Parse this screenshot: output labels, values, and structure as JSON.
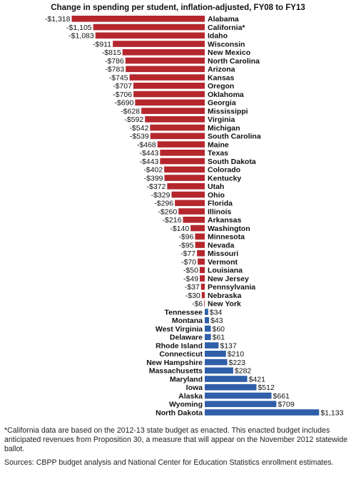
{
  "chart_data": {
    "type": "bar",
    "orientation": "horizontal",
    "title": "Change in spending per student, inflation-adjusted, FY08 to FY13",
    "colors": {
      "negative": "#b5272d",
      "positive": "#2f5fa8"
    },
    "categories": [
      "Alabama",
      "California*",
      "Idaho",
      "Wisconsin",
      "New Mexico",
      "North Carolina",
      "Arizona",
      "Kansas",
      "Oregon",
      "Oklahoma",
      "Georgia",
      "Mississippi",
      "Virginia",
      "Michigan",
      "South Carolina",
      "Maine",
      "Texas",
      "South Dakota",
      "Colorado",
      "Kentucky",
      "Utah",
      "Ohio",
      "Florida",
      "Illinois",
      "Arkansas",
      "Washington",
      "Minnesota",
      "Nevada",
      "Missouri",
      "Vermont",
      "Louisiana",
      "New Jersey",
      "Pennsylvania",
      "Nebraska",
      "New York",
      "Tennessee",
      "Montana",
      "West Virginia",
      "Delaware",
      "Rhode Island",
      "Connecticut",
      "New Hampshire",
      "Massachusetts",
      "Maryland",
      "Iowa",
      "Alaska",
      "Wyoming",
      "North Dakota"
    ],
    "values": [
      -1318,
      -1105,
      -1083,
      -911,
      -815,
      -786,
      -783,
      -745,
      -707,
      -706,
      -690,
      -628,
      -592,
      -542,
      -539,
      -468,
      -443,
      -443,
      -402,
      -399,
      -372,
      -329,
      -296,
      -260,
      -216,
      -140,
      -96,
      -95,
      -77,
      -70,
      -50,
      -49,
      -37,
      -30,
      -6,
      34,
      43,
      60,
      61,
      137,
      210,
      223,
      282,
      421,
      512,
      661,
      709,
      1133
    ],
    "value_labels": [
      "-$1,318",
      "-$1,105",
      "-$1,083",
      "-$911",
      "-$815",
      "-$786",
      "-$783",
      "-$745",
      "-$707",
      "-$706",
      "-$690",
      "-$628",
      "-$592",
      "-$542",
      "-$539",
      "-$468",
      "-$443",
      "-$443",
      "-$402",
      "-$399",
      "-$372",
      "-$329",
      "-$296",
      "-$260",
      "-$216",
      "-$140",
      "-$96",
      "-$95",
      "-$77",
      "-$70",
      "-$50",
      "-$49",
      "-$37",
      "-$30",
      "-$6",
      "$34",
      "$43",
      "$60",
      "$61",
      "$137",
      "$210",
      "$223",
      "$282",
      "$421",
      "$512",
      "$661",
      "$709",
      "$1,133"
    ]
  },
  "footnote": "*California data are based on the 2012-13 state budget as enacted. This enacted budget includes anticipated revenues from Proposition 30, a measure that will appear on the November 2012 statewide ballot.",
  "sources": "Sources: CBPP budget analysis and National Center for Education Statistics enrollment estimates."
}
